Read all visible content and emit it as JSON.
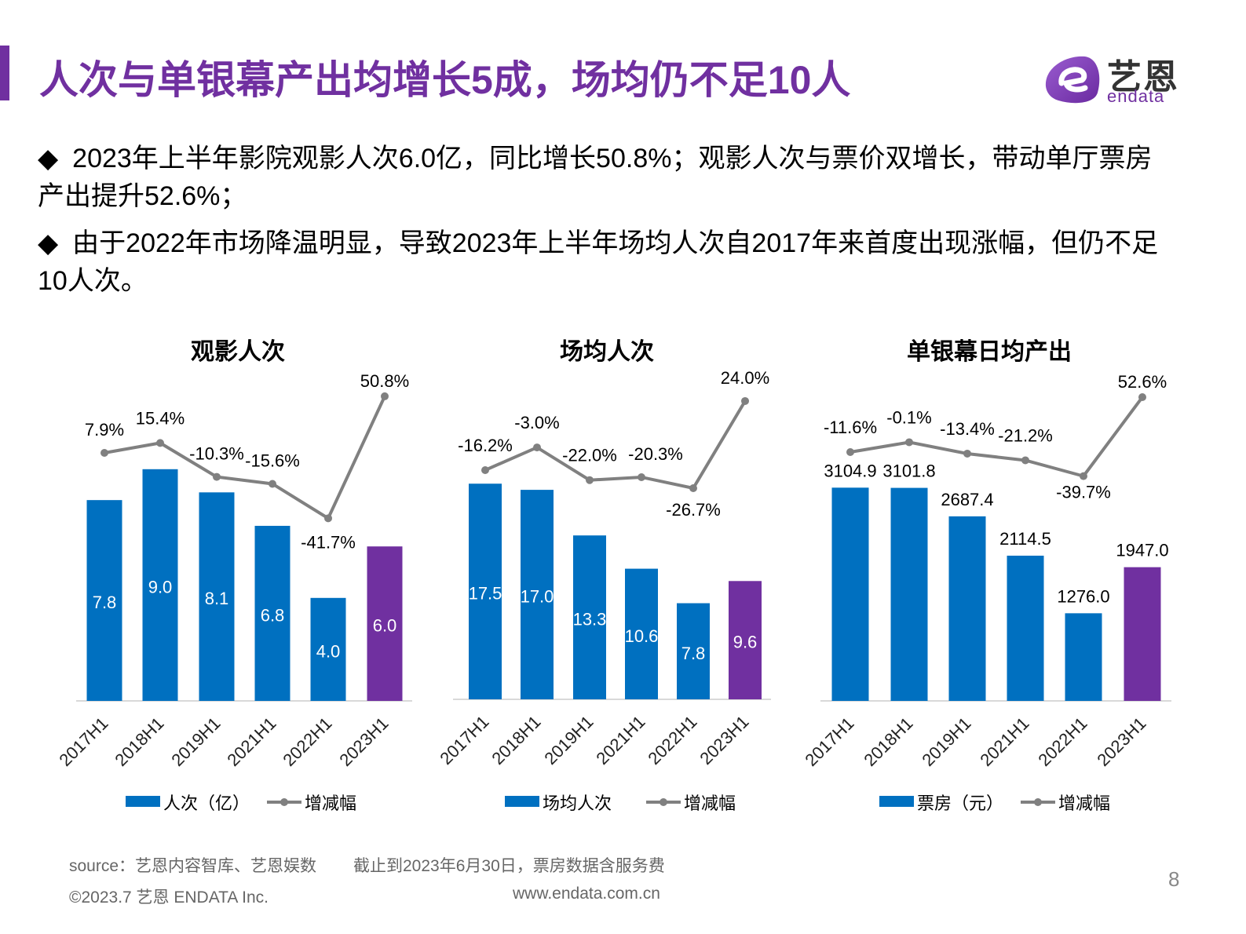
{
  "header": {
    "title": "人次与单银幕产出均增长5成，场均仍不足10人",
    "logo_cn": "艺恩",
    "logo_en": "endata",
    "accent_color": "#7030a0"
  },
  "bullets": [
    {
      "marker": "◆",
      "text": "2023年上半年影院观影人次6.0亿，同比增长50.8%；观影人次与票价双增长，带动单厅票房产出提升52.6%；"
    },
    {
      "marker": "◆",
      "text": "由于2022年市场降温明显，导致2023年上半年场均人次自2017年来首度出现涨幅，但仍不足10人次。"
    }
  ],
  "chart_data": [
    {
      "type": "bar",
      "title": "观影人次",
      "categories": [
        "2017H1",
        "2018H1",
        "2019H1",
        "2021H1",
        "2022H1",
        "2023H1"
      ],
      "series": [
        {
          "name": "人次（亿）",
          "type": "bar",
          "values": [
            7.8,
            9.0,
            8.1,
            6.8,
            4.0,
            6.0
          ],
          "labels": [
            "7.8",
            "9.0",
            "8.1",
            "6.8",
            "4.0",
            "6.0"
          ],
          "color": "#0070c0",
          "highlight_color": "#7030a0"
        },
        {
          "name": "增减幅",
          "type": "line",
          "values": [
            7.9,
            15.4,
            -10.3,
            -15.6,
            -41.7,
            50.8
          ],
          "labels": [
            "7.9%",
            "15.4%",
            "-10.3%",
            "-15.6%",
            "-41.7%",
            "50.8%"
          ],
          "color": "#808080"
        }
      ]
    },
    {
      "type": "bar",
      "title": "场均人次",
      "categories": [
        "2017H1",
        "2018H1",
        "2019H1",
        "2021H1",
        "2022H1",
        "2023H1"
      ],
      "series": [
        {
          "name": "场均人次",
          "type": "bar",
          "values": [
            17.5,
            17.0,
            13.3,
            10.6,
            7.8,
            9.6
          ],
          "labels": [
            "17.5",
            "17.0",
            "13.3",
            "10.6",
            "7.8",
            "9.6"
          ],
          "color": "#0070c0",
          "highlight_color": "#7030a0"
        },
        {
          "name": "增减幅",
          "type": "line",
          "values": [
            -16.2,
            -3.0,
            -22.0,
            -20.3,
            -26.7,
            24.0
          ],
          "labels": [
            "-16.2%",
            "-3.0%",
            "-22.0%",
            "-20.3%",
            "-26.7%",
            "24.0%"
          ],
          "color": "#808080"
        }
      ]
    },
    {
      "type": "bar",
      "title": "单银幕日均产出",
      "categories": [
        "2017H1",
        "2018H1",
        "2019H1",
        "2021H1",
        "2022H1",
        "2023H1"
      ],
      "series": [
        {
          "name": "票房（元）",
          "type": "bar",
          "values": [
            3104.9,
            3101.8,
            2687.4,
            2114.5,
            1276.0,
            1947.0
          ],
          "labels": [
            "3104.9",
            "3101.8",
            "2687.4",
            "2114.5",
            "1276.0",
            "1947.0"
          ],
          "color": "#0070c0",
          "highlight_color": "#7030a0"
        },
        {
          "name": "增减幅",
          "type": "line",
          "values": [
            -11.6,
            -0.1,
            -13.4,
            -21.2,
            -39.7,
            52.6
          ],
          "labels": [
            "-11.6%",
            "-0.1%",
            "-13.4%",
            "-21.2%",
            "-39.7%",
            "52.6%"
          ],
          "color": "#808080"
        }
      ]
    }
  ],
  "footer": {
    "source": "source：艺恩内容智库、艺恩娱数",
    "note": "截止到2023年6月30日，票房数据含服务费",
    "copyright": "©2023.7 艺恩 ENDATA Inc.",
    "url": "www.endata.com.cn",
    "page_number": "8"
  }
}
